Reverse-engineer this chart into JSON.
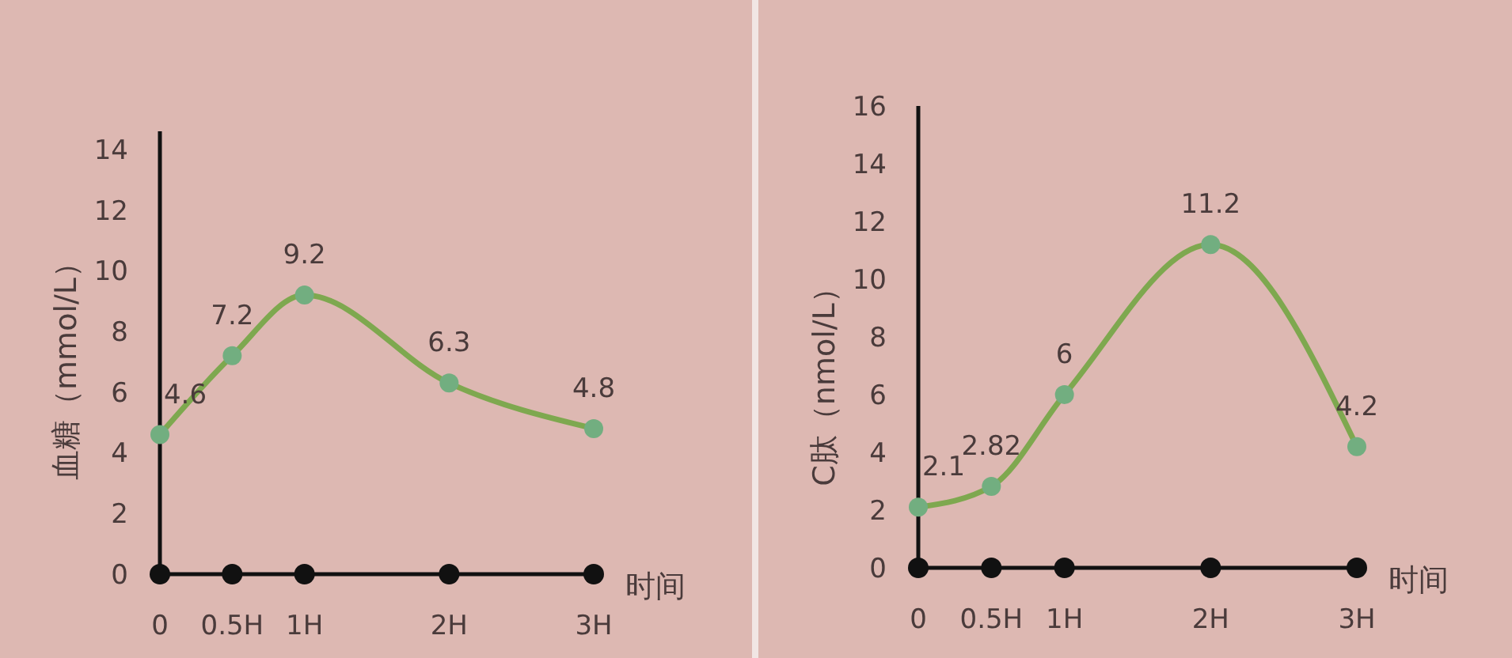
{
  "chart_data": [
    {
      "type": "line",
      "ylabel": "血糖（mmol/L）",
      "xlabel": "时间",
      "x": [
        0,
        0.5,
        1,
        2,
        3
      ],
      "xlim": [
        0,
        3
      ],
      "xticks": [
        0,
        {
          "value": 0.5,
          "label": "0.5H"
        },
        {
          "value": 1,
          "label": "1H"
        },
        {
          "value": 2,
          "label": "2H"
        },
        {
          "value": 3,
          "label": "3H"
        }
      ],
      "ylim": [
        0,
        14.6
      ],
      "yticks": [
        0,
        2,
        4,
        6,
        8,
        10,
        12,
        14
      ],
      "series": [
        {
          "color": "#7ea84f",
          "values": [
            4.6,
            7.2,
            9.2,
            6.3,
            4.8
          ]
        }
      ],
      "marker": "circle",
      "data_labels": true
    },
    {
      "type": "line",
      "ylabel": "C肽（nmol/L）",
      "xlabel": "时间",
      "x": [
        0,
        0.5,
        1,
        2,
        3
      ],
      "xlim": [
        0,
        3
      ],
      "xticks": [
        0,
        {
          "value": 0.5,
          "label": "0.5H"
        },
        {
          "value": 1,
          "label": "1H"
        },
        {
          "value": 2,
          "label": "2H"
        },
        {
          "value": 3,
          "label": "3H"
        }
      ],
      "ylim": [
        0,
        16
      ],
      "yticks": [
        0,
        2,
        4,
        6,
        8,
        10,
        12,
        14,
        16
      ],
      "series": [
        {
          "color": "#7ea84f",
          "values": [
            2.1,
            2.82,
            6,
            11.2,
            4.2
          ]
        }
      ],
      "marker": "circle",
      "data_labels": true
    }
  ]
}
